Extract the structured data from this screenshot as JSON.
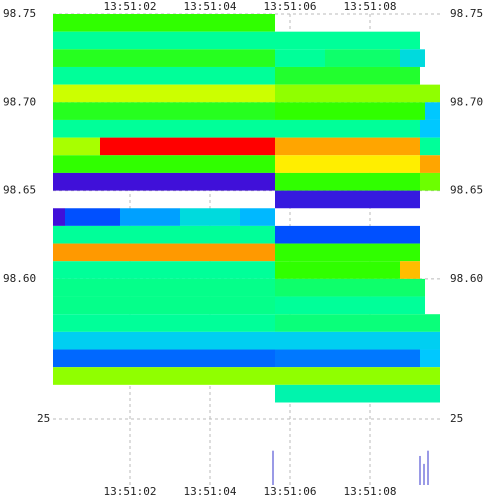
{
  "chart_data": {
    "type": "heatmap",
    "xlim": [
      0.075,
      9.75
    ],
    "xticks": [
      {
        "value": 2,
        "label": "13:51:02"
      },
      {
        "value": 4,
        "label": "13:51:04"
      },
      {
        "value": 6,
        "label": "13:51:06"
      },
      {
        "value": 8,
        "label": "13:51:08"
      }
    ],
    "ylim": [
      98.53,
      98.75
    ],
    "yticks": [
      98.75,
      {
        "value": 98.7,
        "label": "98.70"
      },
      98.65,
      {
        "value": 98.6,
        "label": "98.60"
      }
    ],
    "grid": true,
    "colorscale": [
      [
        0,
        "#5000d0"
      ],
      [
        0.25,
        "#0050ff"
      ],
      [
        0.4,
        "#00c8ff"
      ],
      [
        0.55,
        "#00ff99"
      ],
      [
        0.65,
        "#30ff00"
      ],
      [
        0.78,
        "#ccff00"
      ],
      [
        0.86,
        "#ffee00"
      ],
      [
        0.93,
        "#ff9900"
      ],
      [
        1,
        "#ff0000"
      ]
    ],
    "price_bins": [
      98.75,
      98.74,
      98.73,
      98.72,
      98.71,
      98.7,
      98.69,
      98.68,
      98.67,
      98.66,
      98.65,
      98.64,
      98.63,
      98.62,
      98.61,
      98.6,
      98.59,
      98.58,
      98.57,
      98.56,
      98.55,
      98.54,
      98.53
    ],
    "rows": [
      [
        [
          0.075,
          5.625,
          0.65
        ]
      ],
      [
        [
          0.075,
          9.25,
          0.55
        ]
      ],
      [
        [
          0.075,
          5.625,
          0.63
        ],
        [
          5.625,
          6.875,
          0.55
        ],
        [
          6.875,
          8.75,
          0.58
        ],
        [
          8.75,
          9.375,
          0.45
        ]
      ],
      [
        [
          0.075,
          5.625,
          0.55
        ],
        [
          5.625,
          9.25,
          0.62
        ]
      ],
      [
        [
          0.075,
          5.625,
          0.78
        ],
        [
          5.625,
          9.75,
          0.73
        ]
      ],
      [
        [
          0.075,
          5.625,
          0.63
        ],
        [
          5.625,
          9.375,
          0.65
        ],
        [
          9.375,
          9.75,
          0.4
        ]
      ],
      [
        [
          0.075,
          9.25,
          0.55
        ],
        [
          9.25,
          9.75,
          0.4
        ]
      ],
      [
        [
          0.075,
          1.25,
          0.75
        ],
        [
          1.25,
          5.625,
          1
        ],
        [
          5.625,
          9.25,
          0.92
        ],
        [
          9.25,
          9.75,
          0.55
        ]
      ],
      [
        [
          0.075,
          5.625,
          0.65
        ],
        [
          5.625,
          9.25,
          0.86
        ],
        [
          9.25,
          9.75,
          0.92
        ]
      ],
      [
        [
          0.075,
          5.625,
          0.05
        ],
        [
          5.625,
          9.25,
          0.65
        ],
        [
          9.25,
          9.75,
          0.7
        ]
      ],
      [
        [
          5.625,
          9.25,
          0.08
        ]
      ],
      [
        [
          0.075,
          0.375,
          0.05
        ],
        [
          0.375,
          1.75,
          0.25
        ],
        [
          1.75,
          3.25,
          0.35
        ],
        [
          3.25,
          4.75,
          0.45
        ],
        [
          4.75,
          5.625,
          0.38
        ]
      ],
      [
        [
          0.075,
          5.625,
          0.55
        ],
        [
          5.625,
          9.25,
          0.25
        ]
      ],
      [
        [
          0.075,
          5.625,
          0.93
        ],
        [
          5.625,
          9.25,
          0.65
        ]
      ],
      [
        [
          0.075,
          5.625,
          0.55
        ],
        [
          5.625,
          8.75,
          0.65
        ],
        [
          8.75,
          9.25,
          0.9
        ]
      ],
      [
        [
          0.075,
          5.625,
          0.56
        ],
        [
          5.625,
          9.375,
          0.58
        ]
      ],
      [
        [
          0.075,
          5.625,
          0.56
        ],
        [
          5.625,
          9.375,
          0.55
        ]
      ],
      [
        [
          0.075,
          5.625,
          0.55
        ],
        [
          5.625,
          9.75,
          0.57
        ]
      ],
      [
        [
          0.075,
          5.625,
          0.42
        ],
        [
          5.625,
          9.75,
          0.42
        ]
      ],
      [
        [
          0.075,
          5.625,
          0.28
        ],
        [
          5.625,
          9.25,
          0.3
        ],
        [
          9.25,
          9.75,
          0.4
        ]
      ],
      [
        [
          0.075,
          9.75,
          0.73
        ]
      ],
      [
        [
          5.625,
          9.75,
          0.52
        ]
      ]
    ],
    "volume": {
      "ylim": [
        0,
        25
      ],
      "yticks": [
        25
      ],
      "x": [
        5.575,
        9.25,
        9.35,
        9.45
      ],
      "values": [
        13,
        11,
        8,
        13
      ],
      "color": "#9a9ae6"
    }
  }
}
